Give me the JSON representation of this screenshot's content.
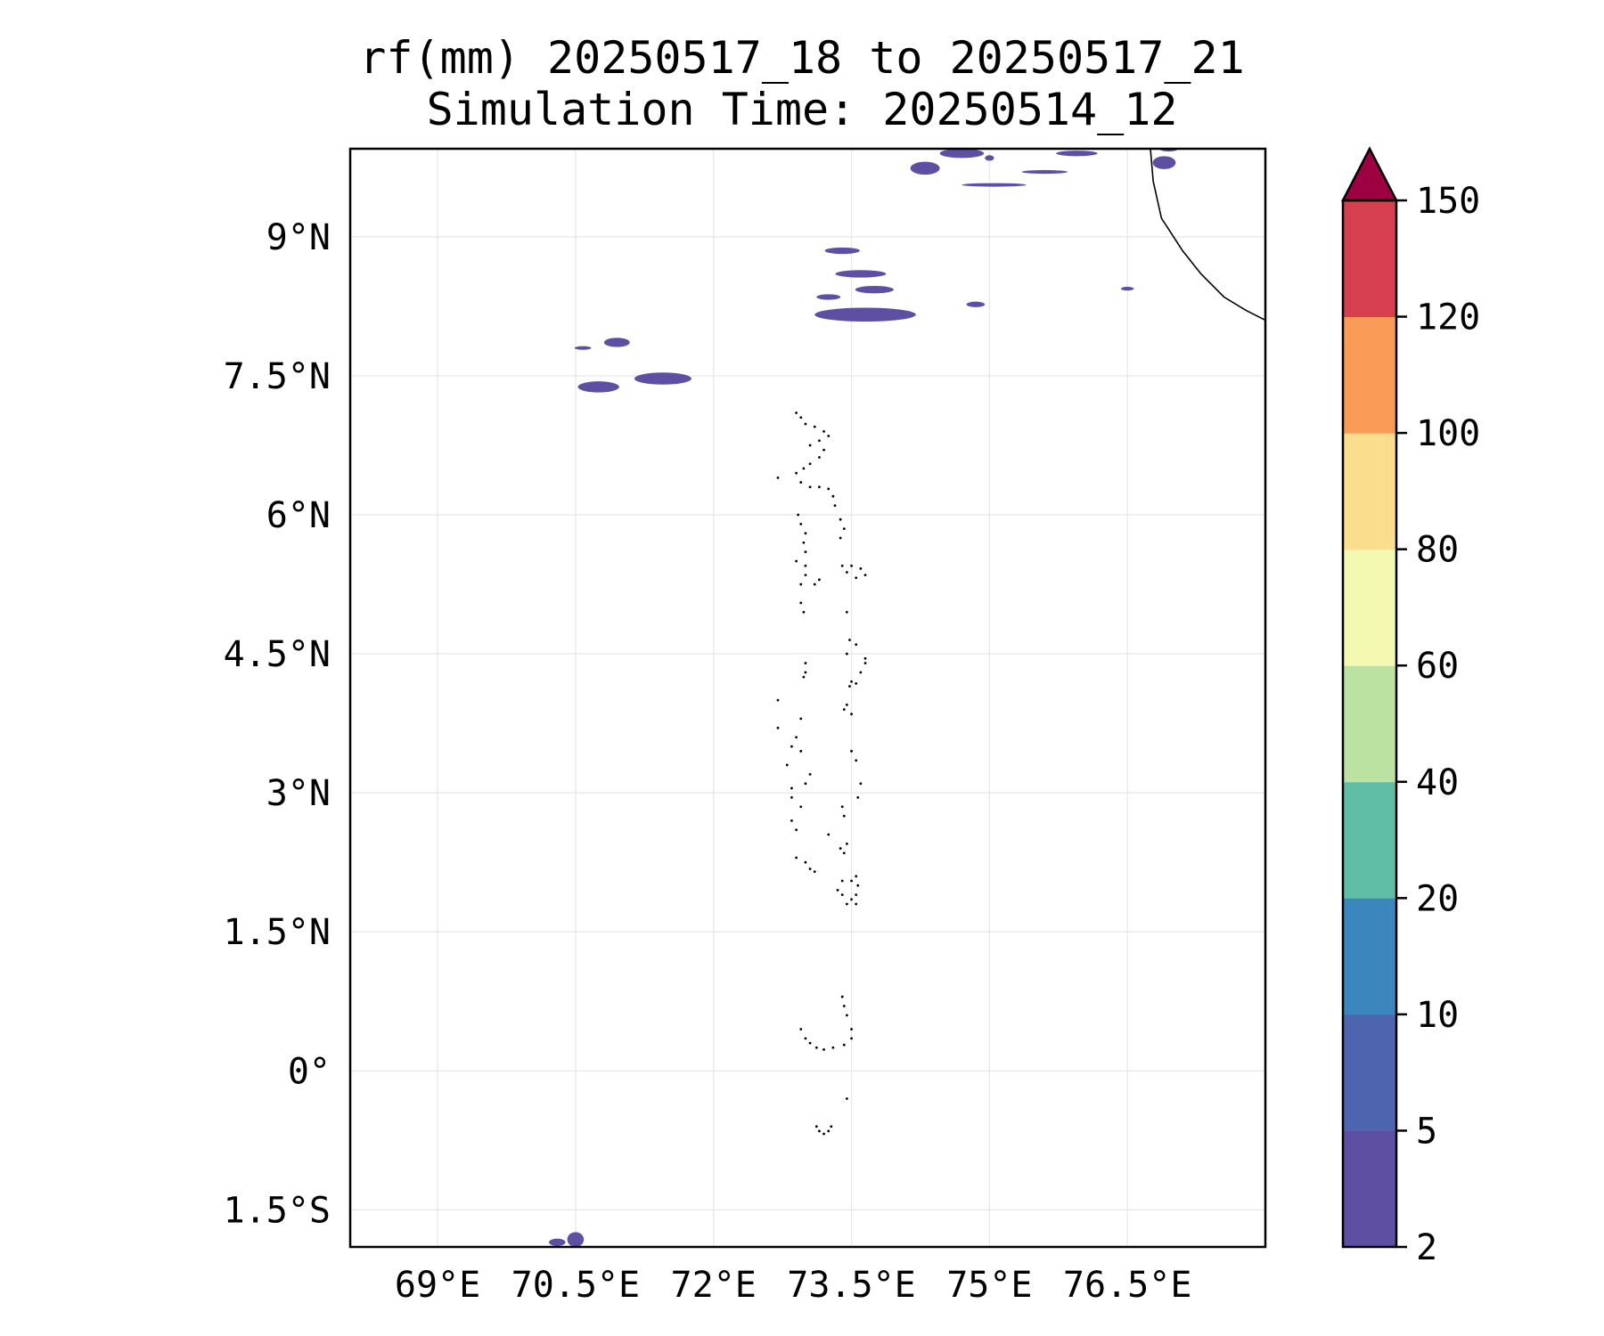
{
  "title": {
    "line1": "rf(mm) 20250517_18 to 20250517_21",
    "line2": "Simulation Time: 20250514_12"
  },
  "map": {
    "lon_range": [
      68.05,
      78.0
    ],
    "lat_range": [
      -1.9,
      9.95
    ],
    "lon_ticks": [
      {
        "value": 69.0,
        "label": "69°E"
      },
      {
        "value": 70.5,
        "label": "70.5°E"
      },
      {
        "value": 72.0,
        "label": "72°E"
      },
      {
        "value": 73.5,
        "label": "73.5°E"
      },
      {
        "value": 75.0,
        "label": "75°E"
      },
      {
        "value": 76.5,
        "label": "76.5°E"
      }
    ],
    "lat_ticks": [
      {
        "value": 9.0,
        "label": "9°N"
      },
      {
        "value": 7.5,
        "label": "7.5°N"
      },
      {
        "value": 6.0,
        "label": "6°N"
      },
      {
        "value": 4.5,
        "label": "4.5°N"
      },
      {
        "value": 3.0,
        "label": "3°N"
      },
      {
        "value": 1.5,
        "label": "1.5°N"
      },
      {
        "value": 0.0,
        "label": "0°"
      },
      {
        "value": -1.5,
        "label": "1.5°S"
      }
    ],
    "gridlines": true,
    "rain_color": "#5e4fa2",
    "rain_areas": [
      {
        "lon": 70.75,
        "lat": 7.38,
        "w": 0.45,
        "h": 0.12
      },
      {
        "lon": 71.45,
        "lat": 7.47,
        "w": 0.62,
        "h": 0.13
      },
      {
        "lon": 70.95,
        "lat": 7.86,
        "w": 0.28,
        "h": 0.1
      },
      {
        "lon": 70.58,
        "lat": 7.8,
        "w": 0.18,
        "h": 0.04
      },
      {
        "lon": 73.4,
        "lat": 8.85,
        "w": 0.38,
        "h": 0.07
      },
      {
        "lon": 73.6,
        "lat": 8.6,
        "w": 0.55,
        "h": 0.08
      },
      {
        "lon": 73.75,
        "lat": 8.43,
        "w": 0.42,
        "h": 0.08
      },
      {
        "lon": 73.65,
        "lat": 8.16,
        "w": 1.1,
        "h": 0.15
      },
      {
        "lon": 73.25,
        "lat": 8.35,
        "w": 0.26,
        "h": 0.06
      },
      {
        "lon": 74.85,
        "lat": 8.27,
        "w": 0.2,
        "h": 0.06
      },
      {
        "lon": 76.5,
        "lat": 8.44,
        "w": 0.14,
        "h": 0.04
      },
      {
        "lon": 74.3,
        "lat": 9.74,
        "w": 0.32,
        "h": 0.14
      },
      {
        "lon": 74.7,
        "lat": 9.9,
        "w": 0.48,
        "h": 0.1
      },
      {
        "lon": 75.0,
        "lat": 9.85,
        "w": 0.1,
        "h": 0.06
      },
      {
        "lon": 75.6,
        "lat": 9.7,
        "w": 0.5,
        "h": 0.04
      },
      {
        "lon": 75.05,
        "lat": 9.56,
        "w": 0.7,
        "h": 0.03
      },
      {
        "lon": 75.95,
        "lat": 9.9,
        "w": 0.45,
        "h": 0.06
      },
      {
        "lon": 76.9,
        "lat": 9.8,
        "w": 0.25,
        "h": 0.14
      },
      {
        "lon": 76.95,
        "lat": 9.95,
        "w": 0.2,
        "h": 0.06
      },
      {
        "lon": 70.3,
        "lat": -1.85,
        "w": 0.18,
        "h": 0.08
      },
      {
        "lon": 70.5,
        "lat": -1.82,
        "w": 0.18,
        "h": 0.16
      }
    ],
    "coastline": [
      [
        76.75,
        9.95
      ],
      [
        76.78,
        9.6
      ],
      [
        76.87,
        9.2
      ],
      [
        77.1,
        8.85
      ],
      [
        77.3,
        8.6
      ],
      [
        77.55,
        8.35
      ],
      [
        77.8,
        8.2
      ],
      [
        78.0,
        8.1
      ],
      [
        78.1,
        8.08
      ],
      [
        78.3,
        8.15
      ],
      [
        78.55,
        8.3
      ]
    ],
    "islands": [
      [
        72.9,
        7.1
      ],
      [
        72.95,
        7.05
      ],
      [
        73.0,
        6.98
      ],
      [
        73.1,
        6.95
      ],
      [
        73.2,
        6.9
      ],
      [
        73.25,
        6.85
      ],
      [
        73.15,
        6.8
      ],
      [
        73.05,
        6.75
      ],
      [
        73.2,
        6.7
      ],
      [
        73.15,
        6.62
      ],
      [
        73.05,
        6.55
      ],
      [
        72.98,
        6.5
      ],
      [
        72.7,
        6.4
      ],
      [
        72.9,
        6.45
      ],
      [
        72.95,
        6.35
      ],
      [
        73.05,
        6.3
      ],
      [
        73.15,
        6.3
      ],
      [
        73.25,
        6.28
      ],
      [
        73.3,
        6.2
      ],
      [
        73.32,
        6.1
      ],
      [
        72.92,
        6.0
      ],
      [
        72.95,
        5.9
      ],
      [
        73.0,
        5.8
      ],
      [
        72.98,
        5.7
      ],
      [
        73.0,
        5.6
      ],
      [
        72.9,
        5.5
      ],
      [
        73.0,
        5.45
      ],
      [
        73.0,
        5.35
      ],
      [
        72.95,
        5.25
      ],
      [
        73.1,
        5.25
      ],
      [
        73.15,
        5.3
      ],
      [
        72.95,
        5.05
      ],
      [
        72.98,
        4.95
      ],
      [
        73.38,
        5.95
      ],
      [
        73.42,
        5.85
      ],
      [
        73.38,
        5.75
      ],
      [
        73.4,
        5.45
      ],
      [
        73.5,
        5.45
      ],
      [
        73.6,
        5.42
      ],
      [
        73.65,
        5.35
      ],
      [
        73.55,
        5.32
      ],
      [
        73.45,
        5.38
      ],
      [
        73.45,
        4.95
      ],
      [
        73.48,
        4.65
      ],
      [
        73.55,
        4.6
      ],
      [
        73.45,
        4.5
      ],
      [
        73.65,
        4.45
      ],
      [
        73.6,
        4.3
      ],
      [
        73.5,
        4.2
      ],
      [
        73.55,
        4.18
      ],
      [
        73.48,
        4.15
      ],
      [
        73.45,
        3.95
      ],
      [
        73.42,
        3.9
      ],
      [
        73.5,
        3.85
      ],
      [
        73.0,
        4.4
      ],
      [
        73.0,
        4.3
      ],
      [
        72.98,
        4.25
      ],
      [
        72.7,
        4.0
      ],
      [
        72.7,
        3.7
      ],
      [
        72.95,
        3.8
      ],
      [
        72.9,
        3.6
      ],
      [
        72.85,
        3.5
      ],
      [
        72.95,
        3.45
      ],
      [
        72.8,
        3.3
      ],
      [
        73.05,
        3.2
      ],
      [
        73.0,
        3.1
      ],
      [
        72.85,
        3.05
      ],
      [
        72.85,
        2.95
      ],
      [
        72.95,
        2.85
      ],
      [
        72.85,
        2.7
      ],
      [
        72.9,
        2.6
      ],
      [
        73.25,
        2.55
      ],
      [
        72.9,
        2.3
      ],
      [
        73.0,
        2.25
      ],
      [
        73.05,
        2.18
      ],
      [
        73.1,
        2.15
      ],
      [
        73.5,
        3.45
      ],
      [
        73.55,
        3.35
      ],
      [
        73.6,
        3.1
      ],
      [
        73.57,
        2.95
      ],
      [
        73.65,
        4.4
      ],
      [
        73.4,
        2.85
      ],
      [
        73.42,
        2.75
      ],
      [
        73.45,
        2.45
      ],
      [
        73.38,
        2.4
      ],
      [
        73.42,
        2.35
      ],
      [
        73.35,
        1.95
      ],
      [
        73.4,
        1.9
      ],
      [
        73.45,
        1.8
      ],
      [
        73.5,
        1.85
      ],
      [
        73.55,
        1.9
      ],
      [
        73.57,
        2.0
      ],
      [
        73.55,
        2.1
      ],
      [
        73.5,
        2.05
      ],
      [
        73.55,
        1.8
      ],
      [
        73.4,
        2.05
      ],
      [
        73.4,
        0.8
      ],
      [
        73.42,
        0.7
      ],
      [
        73.45,
        0.6
      ],
      [
        72.95,
        0.45
      ],
      [
        73.0,
        0.35
      ],
      [
        73.05,
        0.3
      ],
      [
        73.12,
        0.25
      ],
      [
        73.2,
        0.23
      ],
      [
        73.3,
        0.25
      ],
      [
        73.42,
        0.28
      ],
      [
        73.5,
        0.35
      ],
      [
        73.5,
        0.45
      ],
      [
        73.45,
        -0.3
      ],
      [
        73.12,
        -0.6
      ],
      [
        73.15,
        -0.65
      ],
      [
        73.2,
        -0.68
      ],
      [
        73.25,
        -0.65
      ],
      [
        73.28,
        -0.6
      ]
    ]
  },
  "colorbar": {
    "labels": [
      "2",
      "5",
      "10",
      "20",
      "40",
      "60",
      "80",
      "100",
      "120",
      "150"
    ],
    "colors": [
      "#5e4fa2",
      "#4d65ae",
      "#3b86bc",
      "#61bea6",
      "#bbe2a0",
      "#f3f9b0",
      "#fbdd8e",
      "#f89b57",
      "#d6404e"
    ],
    "extend_color": "#9e0142"
  }
}
